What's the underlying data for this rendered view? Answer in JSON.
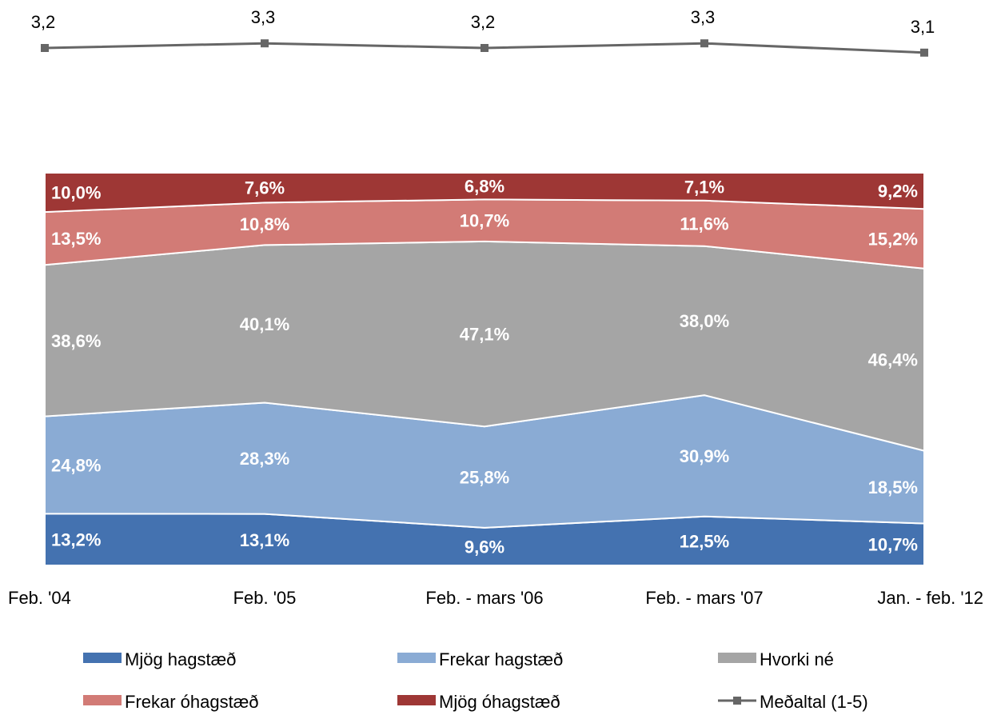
{
  "chart_data": {
    "type": "area",
    "stacked": true,
    "normalized": true,
    "categories": [
      "Feb. '04",
      "Feb. '05",
      "Feb. - mars '06",
      "Feb. - mars '07",
      "Jan. - feb. '12"
    ],
    "series": [
      {
        "name": "Mjög hagstæð",
        "color": "#4472b0",
        "values": [
          13.2,
          13.1,
          9.6,
          12.5,
          10.7
        ],
        "labels": [
          "13,2%",
          "13,1%",
          "9,6%",
          "12,5%",
          "10,7%"
        ]
      },
      {
        "name": "Frekar hagstæð",
        "color": "#8aabd4",
        "values": [
          24.8,
          28.3,
          25.8,
          30.9,
          18.5
        ],
        "labels": [
          "24,8%",
          "28,3%",
          "25,8%",
          "30,9%",
          "18,5%"
        ]
      },
      {
        "name": "Hvorki né",
        "color": "#a5a5a5",
        "values": [
          38.6,
          40.1,
          47.1,
          38.0,
          46.4
        ],
        "labels": [
          "38,6%",
          "40,1%",
          "47,1%",
          "38,0%",
          "46,4%"
        ]
      },
      {
        "name": "Frekar óhagstæð",
        "color": "#d27b76",
        "values": [
          13.5,
          10.8,
          10.7,
          11.6,
          15.2
        ],
        "labels": [
          "13,5%",
          "10,8%",
          "10,7%",
          "11,6%",
          "15,2%"
        ]
      },
      {
        "name": "Mjög óhagstæð",
        "color": "#9e3735",
        "values": [
          10.0,
          7.6,
          6.8,
          7.1,
          9.2
        ],
        "labels": [
          "10,0%",
          "7,6%",
          "6,8%",
          "7,1%",
          "9,2%"
        ]
      }
    ],
    "mean_line": {
      "name": "Meðaltal (1-5)",
      "color": "#666666",
      "values": [
        3.2,
        3.3,
        3.2,
        3.3,
        3.1
      ],
      "labels": [
        "3,2",
        "3,3",
        "3,2",
        "3,3",
        "3,1"
      ]
    },
    "legend_position": "bottom",
    "grid": false
  }
}
